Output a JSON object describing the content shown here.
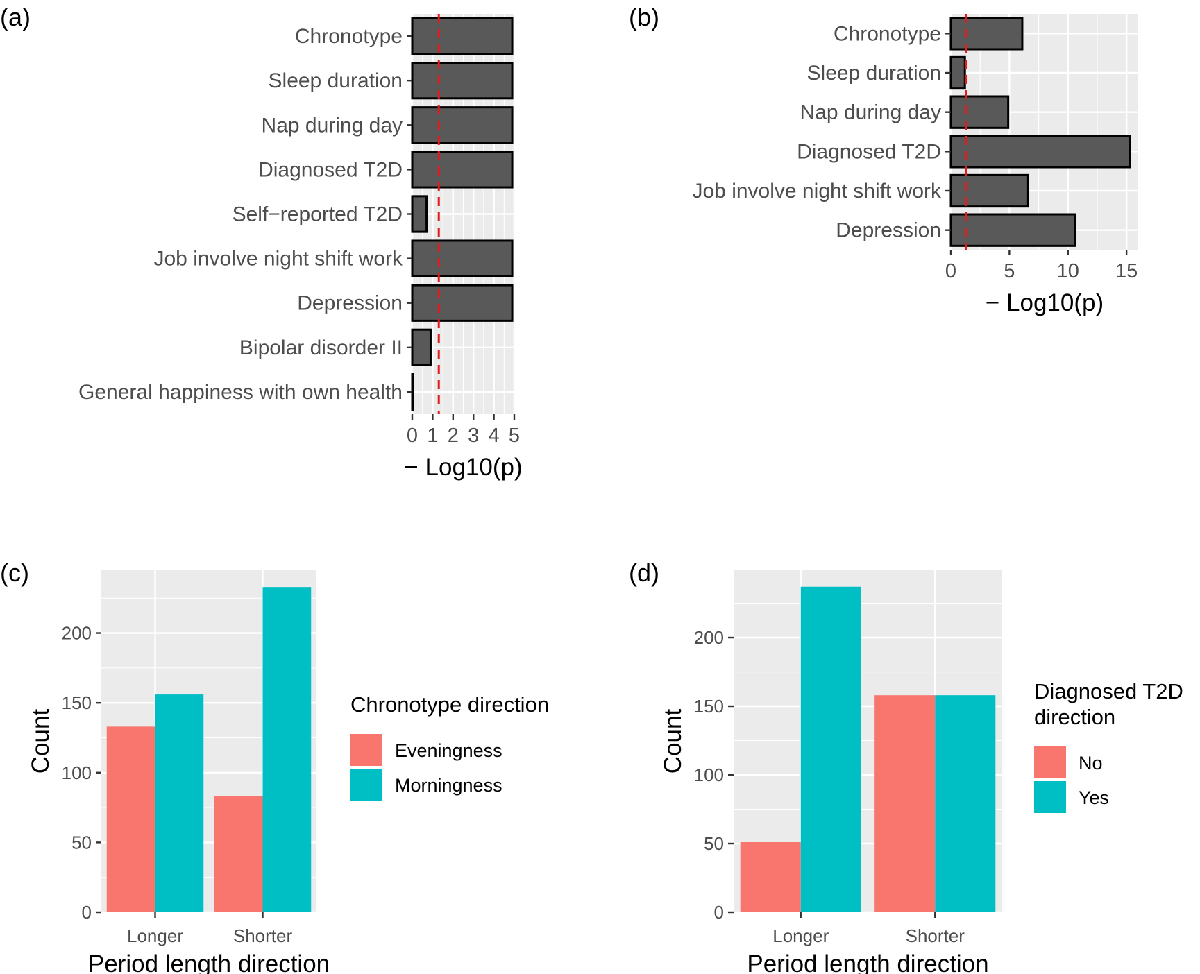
{
  "chart_data": [
    {
      "panel": "(a)",
      "type": "bar",
      "orientation": "horizontal",
      "categories": [
        "Chronotype",
        "Sleep duration",
        "Nap during day",
        "Diagnosed T2D",
        "Self−reported T2D",
        "Job involve night shift work",
        "Depression",
        "Bipolar disorder II",
        "General happiness with own health"
      ],
      "values": [
        4.9,
        4.9,
        4.9,
        4.9,
        0.7,
        4.9,
        4.9,
        0.9,
        0.05
      ],
      "xlabel": "− Log10(p)",
      "xlim": [
        0,
        5
      ],
      "xticks": [
        "0",
        "1",
        "2",
        "3",
        "4",
        "5"
      ],
      "threshold": 1.3,
      "bar_color": "#595959",
      "threshold_color": "#e41a1c",
      "grid": true
    },
    {
      "panel": "(b)",
      "type": "bar",
      "orientation": "horizontal",
      "categories": [
        "Chronotype",
        "Sleep duration",
        "Nap during day",
        "Diagnosed T2D",
        "Job involve night shift work",
        "Depression"
      ],
      "values": [
        6.1,
        1.2,
        4.9,
        15.3,
        6.6,
        10.6
      ],
      "xlabel": "− Log10(p)",
      "xlim": [
        0,
        16
      ],
      "xticks": [
        "0",
        "5",
        "10",
        "15"
      ],
      "threshold": 1.3,
      "bar_color": "#595959",
      "threshold_color": "#e41a1c",
      "grid": true
    },
    {
      "panel": "(c)",
      "type": "bar",
      "categories": [
        "Longer",
        "Shorter"
      ],
      "series": [
        {
          "name": "Eveningness",
          "values": [
            133,
            83
          ],
          "color": "#f8766d"
        },
        {
          "name": "Morningness",
          "values": [
            156,
            233
          ],
          "color": "#00bfc4"
        }
      ],
      "xlabel": "Period length direction",
      "ylabel": "Count",
      "ylim": [
        0,
        245
      ],
      "yticks": [
        "0",
        "50",
        "100",
        "150",
        "200"
      ],
      "legend_title": [
        "Chronotype direction"
      ],
      "legend_position": "right",
      "grid": true
    },
    {
      "panel": "(d)",
      "type": "bar",
      "categories": [
        "Longer",
        "Shorter"
      ],
      "series": [
        {
          "name": "No",
          "values": [
            51,
            158
          ],
          "color": "#f8766d"
        },
        {
          "name": "Yes",
          "values": [
            237,
            158
          ],
          "color": "#00bfc4"
        }
      ],
      "xlabel": "Period length direction",
      "ylabel": "Count",
      "ylim": [
        0,
        249
      ],
      "yticks": [
        "0",
        "50",
        "100",
        "150",
        "200"
      ],
      "legend_title": [
        "Diagnosed T2D",
        "direction"
      ],
      "legend_position": "right",
      "grid": true
    }
  ]
}
